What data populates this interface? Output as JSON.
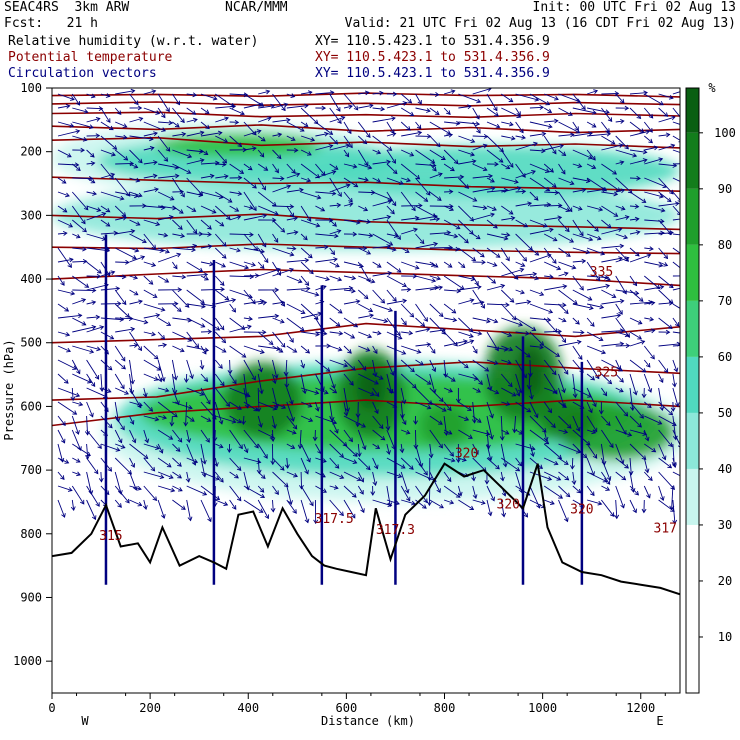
{
  "header": {
    "model": "SEAC4RS  3km ARW",
    "center": "NCAR/MMM",
    "init": "Init: 00 UTC Fri 02 Aug 13",
    "fcst": "Fcst:   21 h",
    "valid": "Valid: 21 UTC Fri 02 Aug 13 (16 CDT Fri 02 Aug 13)",
    "fields": [
      {
        "name": "Relative humidity (w.r.t. water)",
        "xy": "XY= 110.5.423.1 to 531.4.356.9",
        "color": "#000000"
      },
      {
        "name": "Potential temperature",
        "xy": "XY= 110.5.423.1 to 531.4.356.9",
        "color": "#8b0000"
      },
      {
        "name": "Circulation vectors",
        "xy": "XY= 110.5.423.1 to 531.4.356.9",
        "color": "#000080"
      }
    ]
  },
  "chart_data": {
    "type": "heatmap",
    "title": "",
    "xlabel": "Distance (km)",
    "ylabel": "Pressure (hPa)",
    "xlim": [
      0,
      1280
    ],
    "ylim": [
      1050,
      100
    ],
    "x_ticks": [
      0,
      200,
      400,
      600,
      800,
      1000,
      1200
    ],
    "y_ticks": [
      100,
      200,
      300,
      400,
      500,
      600,
      700,
      800,
      900,
      1000
    ],
    "x_end_labels": [
      "W",
      "E"
    ],
    "colorbar": {
      "unit": "%",
      "ticks": [
        10,
        20,
        30,
        40,
        50,
        60,
        70,
        80,
        90,
        100
      ],
      "bins": [
        {
          "from": 0,
          "to": 30,
          "color": "#ffffff"
        },
        {
          "from": 30,
          "to": 40,
          "color": "#c8f5ee"
        },
        {
          "from": 40,
          "to": 50,
          "color": "#8ce8d9"
        },
        {
          "from": 50,
          "to": 60,
          "color": "#50d9bf"
        },
        {
          "from": 60,
          "to": 70,
          "color": "#3ecf7a"
        },
        {
          "from": 70,
          "to": 80,
          "color": "#2fbf3f"
        },
        {
          "from": 80,
          "to": 90,
          "color": "#1f9f2c"
        },
        {
          "from": 90,
          "to": 100,
          "color": "#137d1c"
        },
        {
          "from": 100,
          "to": 108,
          "color": "#0a5f12"
        }
      ]
    },
    "terrain": {
      "color": "#000000",
      "x": [
        0,
        40,
        80,
        110,
        140,
        175,
        200,
        225,
        260,
        300,
        330,
        355,
        380,
        410,
        440,
        470,
        500,
        530,
        555,
        580,
        610,
        640,
        660,
        690,
        720,
        760,
        800,
        840,
        880,
        920,
        960,
        990,
        1010,
        1040,
        1080,
        1120,
        1160,
        1200,
        1240,
        1280
      ],
      "p": [
        835,
        830,
        800,
        755,
        820,
        815,
        845,
        790,
        850,
        835,
        845,
        855,
        770,
        765,
        820,
        760,
        800,
        835,
        850,
        855,
        860,
        865,
        760,
        840,
        770,
        740,
        690,
        710,
        700,
        730,
        760,
        690,
        790,
        845,
        860,
        865,
        875,
        880,
        885,
        895
      ]
    },
    "theta_contours": {
      "color": "#8b0000",
      "levels": [
        {
          "p": [
            112,
            110,
            113,
            108,
            112,
            110,
            114
          ]
        },
        {
          "p": [
            125,
            122,
            127,
            124,
            128,
            123,
            126
          ]
        },
        {
          "p": [
            140,
            138,
            145,
            142,
            146,
            140,
            144
          ]
        },
        {
          "p": [
            160,
            165,
            158,
            168,
            162,
            170,
            165
          ]
        },
        {
          "p": [
            182,
            178,
            190,
            185,
            192,
            188,
            194
          ]
        },
        {
          "p": [
            240,
            245,
            250,
            248,
            255,
            258,
            262
          ]
        },
        {
          "p": [
            300,
            305,
            298,
            310,
            315,
            318,
            322
          ]
        },
        {
          "p": [
            350,
            352,
            345,
            350,
            355,
            358,
            360
          ]
        },
        {
          "p": [
            400,
            392,
            385,
            390,
            395,
            400,
            410
          ]
        },
        {
          "p": [
            500,
            495,
            490,
            470,
            480,
            490,
            475
          ]
        },
        {
          "p": [
            590,
            585,
            560,
            540,
            530,
            540,
            548
          ]
        },
        {
          "p": [
            630,
            610,
            600,
            590,
            600,
            590,
            600
          ]
        }
      ],
      "labels": [
        {
          "text": "335",
          "x": 1120,
          "p": 395
        },
        {
          "text": "325",
          "x": 1130,
          "p": 553
        },
        {
          "text": "320",
          "x": 845,
          "p": 680
        },
        {
          "text": "320",
          "x": 1080,
          "p": 768
        },
        {
          "text": "320",
          "x": 930,
          "p": 760
        },
        {
          "text": "315",
          "x": 120,
          "p": 810
        },
        {
          "text": "317.5",
          "x": 575,
          "p": 783
        },
        {
          "text": "317.3",
          "x": 700,
          "p": 800
        },
        {
          "text": "317",
          "x": 1250,
          "p": 798
        }
      ]
    },
    "rh_patches": [
      {
        "cx": 350,
        "p": 210,
        "w": 700,
        "h": 110,
        "level": 0
      },
      {
        "cx": 640,
        "p": 300,
        "w": 1280,
        "h": 110,
        "level": 1
      },
      {
        "cx": 400,
        "p": 215,
        "w": 620,
        "h": 70,
        "level": 2
      },
      {
        "cx": 380,
        "p": 190,
        "w": 340,
        "h": 40,
        "level": 4
      },
      {
        "cx": 900,
        "p": 230,
        "w": 760,
        "h": 80,
        "level": 2
      },
      {
        "cx": 700,
        "p": 640,
        "w": 1200,
        "h": 220,
        "level": 0
      },
      {
        "cx": 680,
        "p": 620,
        "w": 1100,
        "h": 180,
        "level": 2
      },
      {
        "cx": 680,
        "p": 610,
        "w": 1000,
        "h": 120,
        "level": 4
      },
      {
        "cx": 1150,
        "p": 640,
        "w": 240,
        "h": 90,
        "level": 5
      },
      {
        "cx": 430,
        "p": 590,
        "w": 160,
        "h": 120,
        "level": 6
      },
      {
        "cx": 650,
        "p": 580,
        "w": 140,
        "h": 140,
        "level": 6
      },
      {
        "cx": 650,
        "p": 570,
        "w": 60,
        "h": 70,
        "level": 8
      },
      {
        "cx": 960,
        "p": 550,
        "w": 160,
        "h": 150,
        "level": 6
      },
      {
        "cx": 975,
        "p": 545,
        "w": 60,
        "h": 80,
        "level": 8
      },
      {
        "cx": 800,
        "p": 630,
        "w": 100,
        "h": 70,
        "level": 5
      },
      {
        "cx": 1050,
        "p": 620,
        "w": 120,
        "h": 70,
        "level": 6
      }
    ],
    "wind_vectors": {
      "color": "#000080"
    }
  }
}
